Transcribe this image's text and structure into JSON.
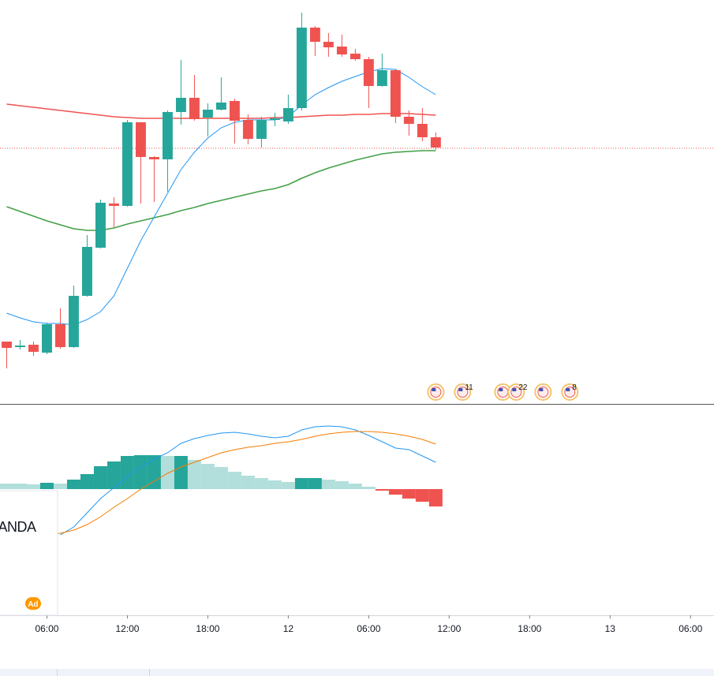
{
  "chart_data": [
    {
      "type": "candlestick",
      "xlim": [
        -0.5,
        52.75
      ],
      "ylim": [
        -12,
        500
      ],
      "x": [
        0,
        1,
        2,
        3,
        4,
        5,
        6,
        7,
        8,
        9,
        10,
        11,
        12,
        13,
        14,
        15,
        16,
        17,
        18,
        19,
        20,
        21,
        22,
        23,
        24,
        25,
        26,
        27,
        28,
        29,
        30,
        31,
        32
      ],
      "open": [
        67,
        60,
        63,
        53,
        89,
        60,
        125,
        186,
        242,
        239,
        345,
        301,
        298,
        358,
        376,
        351,
        361,
        372,
        348,
        324,
        348,
        346,
        363,
        465,
        447,
        441,
        432,
        425,
        391,
        411,
        352,
        343,
        326
      ],
      "high": [
        67,
        69,
        67,
        91,
        109,
        138,
        202,
        247,
        250,
        348,
        345,
        302,
        360,
        424,
        405,
        369,
        402,
        375,
        355,
        352,
        357,
        380,
        484,
        467,
        458,
        456,
        438,
        428,
        432,
        412,
        360,
        363,
        332
      ],
      "low": [
        33,
        57,
        49,
        51,
        58,
        59,
        124,
        185,
        212,
        238,
        242,
        244,
        257,
        342,
        347,
        327,
        360,
        318,
        317,
        313,
        340,
        343,
        360,
        429,
        428,
        428,
        423,
        363,
        390,
        344,
        328,
        321,
        310
      ],
      "close": [
        59,
        62,
        54,
        89,
        60,
        125,
        187,
        243,
        239,
        345,
        301,
        298,
        358,
        376,
        349,
        361,
        370,
        347,
        324,
        348,
        350,
        363,
        465,
        447,
        440,
        431,
        425,
        391,
        411,
        352,
        343,
        326,
        313
      ],
      "up_color": "#26a69a",
      "down_color": "#ef5350",
      "series": [
        {
          "color": "#ef5350",
          "values": [
            368,
            366,
            364,
            362,
            360,
            358,
            356,
            354,
            352,
            351,
            350,
            350,
            350,
            350,
            350,
            350,
            350,
            350,
            350,
            350,
            351,
            351,
            352,
            353,
            354,
            354,
            355,
            355,
            356,
            356,
            356,
            355,
            354
          ]
        },
        {
          "color": "#43a047",
          "values": [
            238,
            232,
            226,
            220,
            215,
            210,
            208,
            208,
            211,
            216,
            220,
            224,
            228,
            233,
            237,
            242,
            246,
            250,
            254,
            258,
            261,
            266,
            274,
            281,
            287,
            292,
            297,
            301,
            305,
            307,
            308,
            309,
            309
          ]
        },
        {
          "color": "#2196f3",
          "values": [
            103,
            97,
            92,
            90,
            90,
            88,
            95,
            105,
            125,
            160,
            195,
            225,
            255,
            285,
            307,
            325,
            338,
            345,
            348,
            348,
            348,
            352,
            367,
            380,
            389,
            397,
            403,
            409,
            413,
            412,
            402,
            390,
            380
          ]
        }
      ],
      "price_line": 312,
      "price_line_color": "#ef5350",
      "events": [
        {
          "x": 32
        },
        {
          "x": 34,
          "label": "11"
        },
        {
          "x": 37
        },
        {
          "x": 38,
          "label": "22"
        },
        {
          "x": 40
        },
        {
          "x": 42,
          "label": "8"
        }
      ]
    },
    {
      "type": "bar",
      "xlim": [
        -0.5,
        52.75
      ],
      "ylim": [
        -160,
        108
      ],
      "x": [
        0,
        1,
        2,
        3,
        4,
        5,
        6,
        7,
        8,
        9,
        10,
        11,
        12,
        13,
        14,
        15,
        16,
        17,
        18,
        19,
        20,
        21,
        22,
        23,
        24,
        25,
        26,
        27,
        28,
        29,
        30,
        31,
        32
      ],
      "values": [
        7,
        7,
        6,
        8,
        7,
        12,
        19,
        29,
        35,
        42,
        43,
        43,
        42,
        42,
        37,
        32,
        28,
        22,
        17,
        14,
        11,
        9,
        14,
        14,
        12,
        10,
        7,
        3,
        -2,
        -7,
        -12,
        -16,
        -22
      ],
      "colors": [
        "#b2dfdb",
        "#b2dfdb",
        "#b2dfdb",
        "#26a69a",
        "#b2dfdb",
        "#26a69a",
        "#26a69a",
        "#26a69a",
        "#26a69a",
        "#26a69a",
        "#26a69a",
        "#26a69a",
        "#b2dfdb",
        "#26a69a",
        "#b2dfdb",
        "#b2dfdb",
        "#b2dfdb",
        "#b2dfdb",
        "#b2dfdb",
        "#b2dfdb",
        "#b2dfdb",
        "#b2dfdb",
        "#26a69a",
        "#26a69a",
        "#b2dfdb",
        "#b2dfdb",
        "#b2dfdb",
        "#b2dfdb",
        "#ef5350",
        "#ef5350",
        "#ef5350",
        "#ef5350",
        "#ef5350"
      ],
      "series": [
        {
          "color": "#2196f3",
          "values": [
            null,
            null,
            null,
            null,
            -58,
            -48,
            -30,
            -12,
            2,
            16,
            28,
            38,
            46,
            58,
            64,
            68,
            71,
            72,
            70,
            67,
            65,
            67,
            75,
            79,
            80,
            79,
            75,
            68,
            60,
            52,
            50,
            42,
            34
          ]
        },
        {
          "color": "#f57c00",
          "values": [
            null,
            null,
            null,
            -58,
            -56,
            -52,
            -45,
            -35,
            -23,
            -12,
            0,
            10,
            20,
            28,
            34,
            40,
            46,
            50,
            53,
            55,
            58,
            60,
            63,
            67,
            70,
            72,
            73,
            73,
            72,
            70,
            67,
            63,
            57
          ]
        }
      ],
      "xticks": [
        {
          "value": 3,
          "label": "06:00"
        },
        {
          "value": 9,
          "label": "12:00"
        },
        {
          "value": 15,
          "label": "18:00"
        },
        {
          "value": 21,
          "label": "12"
        },
        {
          "value": 27,
          "label": "06:00"
        },
        {
          "value": 33,
          "label": "12:00"
        },
        {
          "value": 39,
          "label": "18:00"
        },
        {
          "value": 45,
          "label": "13"
        },
        {
          "value": 51,
          "label": "06:00"
        }
      ]
    }
  ],
  "ad": {
    "brand": "OANDA",
    "badge": "Ad"
  }
}
